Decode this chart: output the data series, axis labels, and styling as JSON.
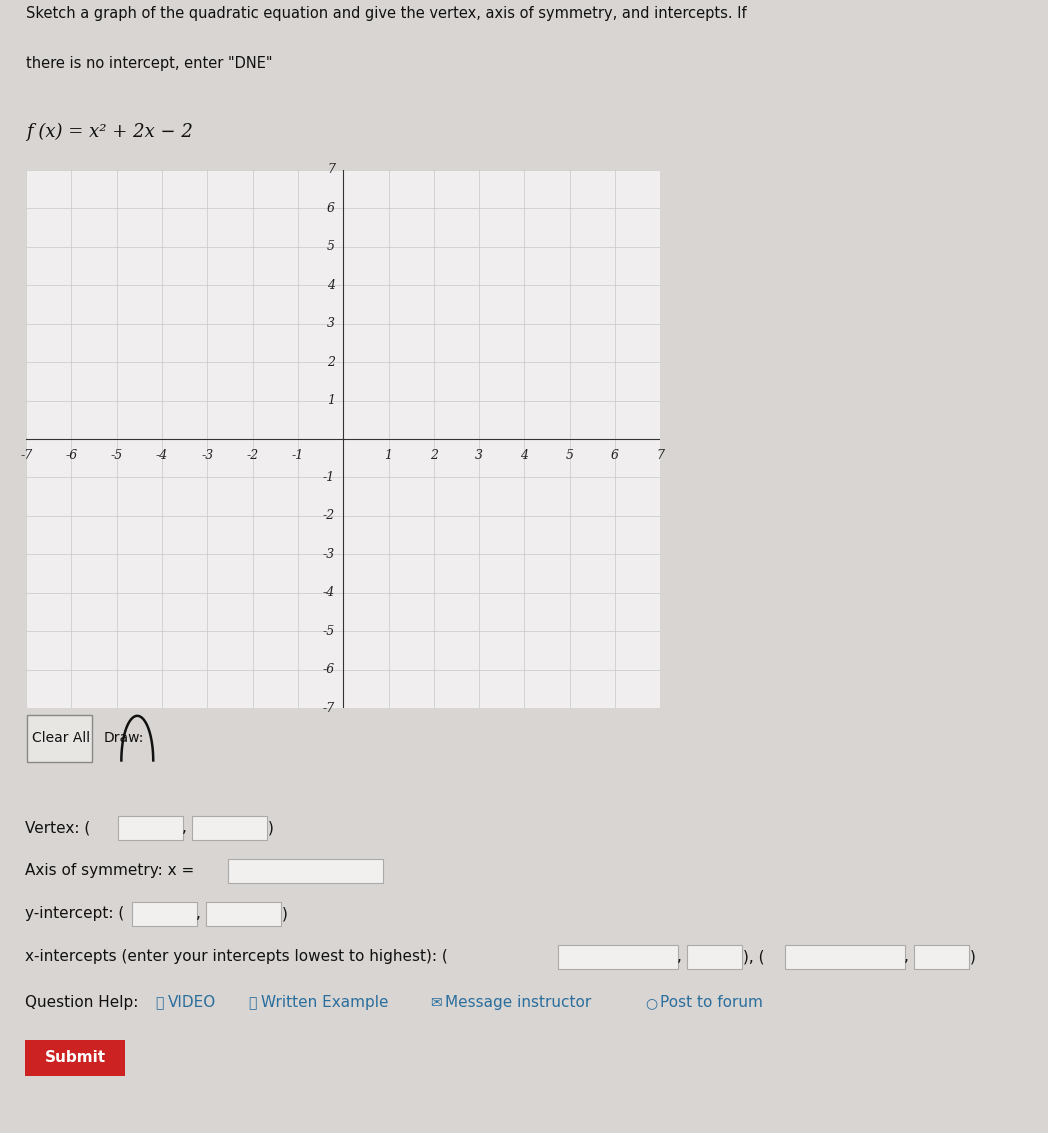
{
  "title_line1": "Sketch a graph of the quadratic equation and give the vertex, axis of symmetry, and intercepts. If",
  "title_line2": "there is no intercept, enter \"DNE\"",
  "equation_text": "f (x) = x² + 2x − 2",
  "graph_xlim": [
    -7,
    7
  ],
  "graph_ylim": [
    -7,
    7
  ],
  "grid_color": "#c8c8c8",
  "axis_color": "#333333",
  "graph_bg": "#f0eeee",
  "page_bg": "#d8d5d2",
  "font_size_title": 10.5,
  "font_size_equation": 13,
  "font_size_axis_labels": 9,
  "font_size_form": 11,
  "help_link_color": "#2a6e9e",
  "clear_all_label": "Clear All",
  "draw_label": "Draw:",
  "vertex_label": "Vertex: (",
  "aos_label": "Axis of symmetry: x =",
  "yint_label": "y-intercept: (",
  "xint_label": "x-intercepts (enter your intercepts lowest to highest): (",
  "qhelp_label": "Question Help:",
  "help_links": [
    " VIDEO",
    " Written Example",
    " Message instructor",
    " Post to forum"
  ],
  "submit_label": "Submit",
  "submit_color": "#cc2222"
}
